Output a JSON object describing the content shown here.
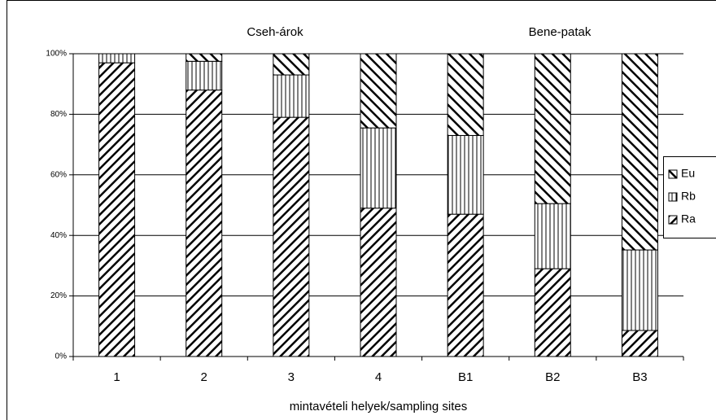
{
  "chart_data": {
    "type": "stacked_bar",
    "annotations": [
      "Cseh-árok",
      "Bene-patak"
    ],
    "x_label": "mintavételi helyek/sampling sites",
    "categories": [
      "1",
      "2",
      "3",
      "4",
      "B1",
      "B2",
      "B3"
    ],
    "series": [
      {
        "name": "Ra",
        "color": "#000000",
        "values": [
          97,
          88,
          79,
          49,
          47,
          29,
          8.6
        ]
      },
      {
        "name": "Rb",
        "color": "#000000",
        "values": [
          3,
          9.5,
          14,
          26.5,
          26,
          21.5,
          26.6
        ]
      },
      {
        "name": "Eu",
        "color": "#000000",
        "values": [
          0,
          2.5,
          7,
          24.5,
          27,
          49.5,
          64.8
        ]
      }
    ],
    "ylim": [
      0,
      100
    ],
    "yticks": [
      {
        "value": 0,
        "label": "0%"
      },
      {
        "value": 20,
        "label": "20%"
      },
      {
        "value": 40,
        "label": "40%"
      },
      {
        "value": 60,
        "label": "60%"
      },
      {
        "value": 80,
        "label": "80%"
      },
      {
        "value": 100,
        "label": "100%"
      }
    ],
    "grid": true
  }
}
